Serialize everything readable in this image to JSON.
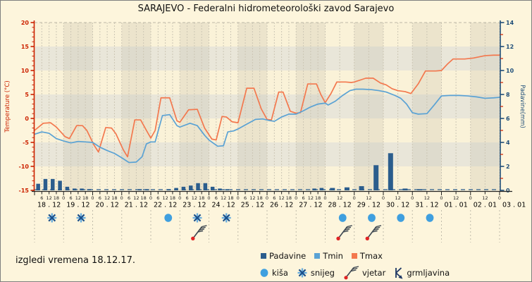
{
  "title": "SARAJEVO - Federalni hidrometeorološki zavod Sarajevo",
  "footer_text": "izgledi vremena 18.12.17.",
  "legend": {
    "padavine": "Padavine",
    "tmin": "Tmin",
    "tmax": "Tmax",
    "kisa": "kiša",
    "snijeg": "snijeg",
    "vjetar": "vjetar",
    "grmljavina": "grmljavina"
  },
  "axes": {
    "temp_label": "Temperature (°C)",
    "precip_label": "Padavine(mm)",
    "temp_ticks": [
      -15,
      -10,
      -5,
      0,
      5,
      10,
      15,
      20
    ],
    "precip_ticks": [
      0,
      2,
      4,
      6,
      8,
      10,
      12,
      14
    ],
    "temp_range": [
      -15,
      20
    ],
    "precip_range": [
      0,
      14
    ]
  },
  "x_axis": {
    "dates": [
      "18 . 12",
      "19 . 12",
      "20 . 12",
      "21 . 12",
      "22 . 12",
      "23 . 12",
      "24 . 12",
      "25 . 12",
      "26 . 12",
      "27 . 12",
      "28 . 12",
      "29 . 12",
      "30 . 12",
      "31 . 12",
      "01 . 01",
      "02 . 01",
      "03 . 01"
    ],
    "hour_cycle_6h": [
      "6",
      "12",
      "18",
      "0"
    ],
    "hour_cycle_12h": [
      "12",
      "0"
    ],
    "sixh_days": 10,
    "total_days": 16
  },
  "colors": {
    "tmax": "#f3784e",
    "tmin": "#5aa2d4",
    "precip_bar": "#2b5d8d",
    "rain_icon": "#3f9fdf",
    "snow_light": "#6aaede",
    "snow_dark": "#1b4f8a",
    "wind_staff": "#3c4650",
    "wind_dot": "#e02424",
    "thunder": "#1f3864",
    "temp_axis": "#cc2200",
    "precip_axis": "#1f4e79",
    "plot_bg": "#faf2d8",
    "band_gray": "#e9e6d9",
    "grid_dash": "#ccc6b4"
  },
  "chart_data": {
    "type": "line",
    "x_unit": "days from 18.12 00h",
    "temp_axis_range": [
      -15,
      20
    ],
    "precip_axis_range": [
      0,
      14
    ],
    "shade_bands_temp": [
      [
        15,
        10
      ],
      [
        5,
        0
      ],
      [
        -5,
        -10
      ]
    ],
    "series": [
      {
        "name": "Tmax",
        "kind": "line",
        "points": [
          [
            0,
            -2.5
          ],
          [
            0.3,
            -1.0
          ],
          [
            0.55,
            -0.9
          ],
          [
            0.75,
            -1.8
          ],
          [
            1.05,
            -3.8
          ],
          [
            1.2,
            -4.2
          ],
          [
            1.45,
            -1.5
          ],
          [
            1.65,
            -1.5
          ],
          [
            1.8,
            -2.5
          ],
          [
            2.05,
            -5.6
          ],
          [
            2.2,
            -7.0
          ],
          [
            2.45,
            -1.9
          ],
          [
            2.65,
            -2.0
          ],
          [
            2.8,
            -3.2
          ],
          [
            3.05,
            -6.5
          ],
          [
            3.2,
            -8.0
          ],
          [
            3.45,
            -0.3
          ],
          [
            3.65,
            -0.3
          ],
          [
            3.85,
            -2.5
          ],
          [
            4.0,
            -4.1
          ],
          [
            4.15,
            -2.5
          ],
          [
            4.35,
            4.3
          ],
          [
            4.65,
            4.3
          ],
          [
            4.9,
            -0.5
          ],
          [
            5.0,
            -0.8
          ],
          [
            5.3,
            1.8
          ],
          [
            5.6,
            1.9
          ],
          [
            5.85,
            -2.0
          ],
          [
            6.1,
            -4.3
          ],
          [
            6.25,
            -4.5
          ],
          [
            6.45,
            0.4
          ],
          [
            6.6,
            0.3
          ],
          [
            6.8,
            -0.7
          ],
          [
            7.0,
            -0.9
          ],
          [
            7.3,
            6.3
          ],
          [
            7.55,
            6.3
          ],
          [
            7.8,
            2.0
          ],
          [
            8.0,
            -0.2
          ],
          [
            8.15,
            -0.3
          ],
          [
            8.4,
            5.5
          ],
          [
            8.55,
            5.5
          ],
          [
            8.8,
            1.5
          ],
          [
            9.0,
            1.1
          ],
          [
            9.15,
            1.2
          ],
          [
            9.4,
            7.2
          ],
          [
            9.7,
            7.2
          ],
          [
            9.85,
            5.0
          ],
          [
            10.0,
            3.3
          ],
          [
            10.2,
            5.2
          ],
          [
            10.4,
            7.6
          ],
          [
            10.7,
            7.6
          ],
          [
            10.9,
            7.5
          ],
          [
            11.0,
            7.6
          ],
          [
            11.4,
            8.4
          ],
          [
            11.65,
            8.4
          ],
          [
            11.9,
            7.4
          ],
          [
            12.1,
            7.0
          ],
          [
            12.3,
            6.2
          ],
          [
            12.5,
            5.8
          ],
          [
            12.75,
            5.6
          ],
          [
            12.95,
            5.2
          ],
          [
            13.2,
            7.2
          ],
          [
            13.45,
            9.9
          ],
          [
            13.8,
            9.9
          ],
          [
            14.0,
            10.0
          ],
          [
            14.2,
            11.3
          ],
          [
            14.4,
            12.4
          ],
          [
            14.8,
            12.4
          ],
          [
            15.1,
            12.6
          ],
          [
            15.5,
            13.1
          ],
          [
            15.8,
            13.2
          ],
          [
            16,
            13.2
          ]
        ]
      },
      {
        "name": "Tmin",
        "kind": "line",
        "points": [
          [
            0,
            -3.3
          ],
          [
            0.25,
            -2.8
          ],
          [
            0.5,
            -3.1
          ],
          [
            0.75,
            -4.2
          ],
          [
            1.0,
            -4.7
          ],
          [
            1.25,
            -5.1
          ],
          [
            1.5,
            -4.8
          ],
          [
            1.75,
            -4.9
          ],
          [
            2.0,
            -5.0
          ],
          [
            2.25,
            -6.0
          ],
          [
            2.5,
            -6.7
          ],
          [
            2.75,
            -7.3
          ],
          [
            3.0,
            -8.2
          ],
          [
            3.25,
            -9.2
          ],
          [
            3.5,
            -9.1
          ],
          [
            3.7,
            -8.0
          ],
          [
            3.85,
            -5.3
          ],
          [
            4.0,
            -4.9
          ],
          [
            4.15,
            -4.9
          ],
          [
            4.4,
            0.6
          ],
          [
            4.65,
            0.8
          ],
          [
            4.9,
            -1.5
          ],
          [
            5.0,
            -1.8
          ],
          [
            5.35,
            -1.0
          ],
          [
            5.6,
            -1.5
          ],
          [
            5.85,
            -3.5
          ],
          [
            6.0,
            -4.5
          ],
          [
            6.3,
            -5.8
          ],
          [
            6.5,
            -5.7
          ],
          [
            6.65,
            -2.8
          ],
          [
            6.85,
            -2.6
          ],
          [
            7.0,
            -2.2
          ],
          [
            7.3,
            -1.2
          ],
          [
            7.6,
            -0.2
          ],
          [
            7.85,
            -0.1
          ],
          [
            8.05,
            -0.4
          ],
          [
            8.25,
            -0.6
          ],
          [
            8.5,
            0.3
          ],
          [
            8.75,
            0.9
          ],
          [
            9.0,
            0.9
          ],
          [
            9.25,
            1.6
          ],
          [
            9.5,
            2.4
          ],
          [
            9.75,
            3.0
          ],
          [
            10.0,
            3.2
          ],
          [
            10.1,
            2.8
          ],
          [
            10.35,
            3.6
          ],
          [
            10.6,
            4.8
          ],
          [
            10.85,
            5.8
          ],
          [
            11.05,
            6.1
          ],
          [
            11.3,
            6.1
          ],
          [
            11.6,
            6.0
          ],
          [
            11.85,
            5.8
          ],
          [
            12.1,
            5.5
          ],
          [
            12.4,
            4.8
          ],
          [
            12.6,
            4.2
          ],
          [
            12.8,
            3.0
          ],
          [
            13.0,
            1.2
          ],
          [
            13.2,
            0.9
          ],
          [
            13.5,
            1.0
          ],
          [
            13.75,
            2.8
          ],
          [
            14.0,
            4.7
          ],
          [
            14.3,
            4.8
          ],
          [
            14.6,
            4.8
          ],
          [
            14.9,
            4.7
          ],
          [
            15.2,
            4.5
          ],
          [
            15.5,
            4.2
          ],
          [
            15.8,
            4.3
          ],
          [
            16,
            4.4
          ]
        ]
      },
      {
        "name": "Padavine",
        "kind": "bar",
        "unit": "mm",
        "bars": [
          [
            0,
            0.25,
            0.55
          ],
          [
            0.25,
            0.25,
            0.95
          ],
          [
            0.5,
            0.25,
            0.95
          ],
          [
            0.75,
            0.25,
            0.8
          ],
          [
            1.0,
            0.25,
            0.3
          ],
          [
            1.25,
            0.25,
            0.15
          ],
          [
            1.5,
            0.25,
            0.15
          ],
          [
            1.75,
            0.25,
            0.1
          ],
          [
            3.5,
            0.25,
            0.1
          ],
          [
            3.75,
            0.25,
            0.1
          ],
          [
            4.5,
            0.25,
            0.1
          ],
          [
            4.75,
            0.25,
            0.2
          ],
          [
            5.0,
            0.25,
            0.3
          ],
          [
            5.25,
            0.25,
            0.4
          ],
          [
            5.5,
            0.25,
            0.6
          ],
          [
            5.75,
            0.25,
            0.6
          ],
          [
            6.0,
            0.25,
            0.3
          ],
          [
            6.25,
            0.25,
            0.15
          ],
          [
            6.5,
            0.25,
            0.1
          ],
          [
            9.5,
            0.25,
            0.15
          ],
          [
            9.75,
            0.25,
            0.2
          ],
          [
            10.0,
            0.5,
            0.2
          ],
          [
            10.5,
            0.5,
            0.25
          ],
          [
            11.0,
            0.5,
            0.35
          ],
          [
            11.5,
            0.5,
            2.1
          ],
          [
            12.0,
            0.5,
            3.1
          ],
          [
            12.5,
            0.5,
            0.15
          ],
          [
            13.0,
            0.5,
            0.1
          ]
        ]
      }
    ],
    "icons_by_day": {
      "0": [
        "snijeg"
      ],
      "1": [
        "snijeg"
      ],
      "4": [
        "kisa"
      ],
      "5": [
        "snijeg",
        "vjetar"
      ],
      "6": [
        "snijeg"
      ],
      "10": [
        "kisa",
        "vjetar"
      ],
      "11": [
        "kisa",
        "vjetar"
      ],
      "12": [
        "kisa"
      ],
      "13": [
        "kisa"
      ]
    }
  }
}
